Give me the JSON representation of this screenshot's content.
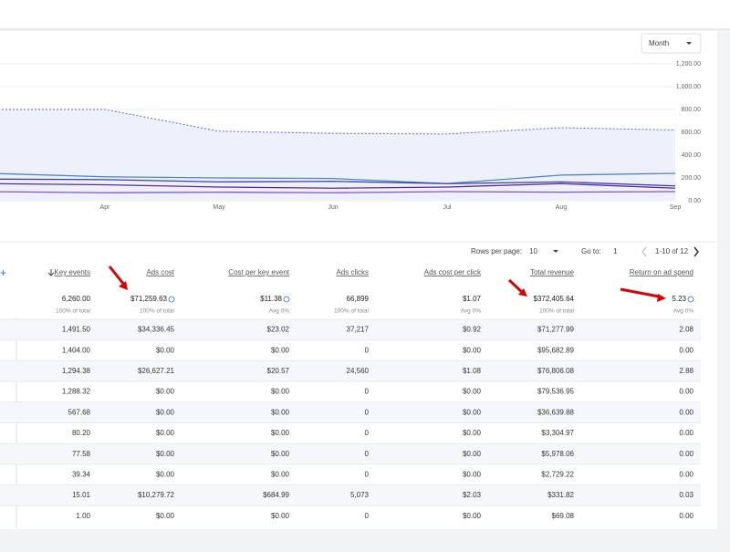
{
  "toolbar": {
    "granularity": "Month"
  },
  "chart_data": {
    "type": "line",
    "categories": [
      null,
      "Apr",
      "May",
      "Jun",
      "Jul",
      "Aug",
      "Sep"
    ],
    "ylim": [
      0,
      1200
    ],
    "yticks": [
      {
        "value": 0,
        "label": "0.00"
      },
      {
        "value": 200,
        "label": "200.00"
      },
      {
        "value": 400,
        "label": "400.00"
      },
      {
        "value": 600,
        "label": "600.00"
      },
      {
        "value": 800,
        "label": "800.00"
      },
      {
        "value": 1000,
        "label": "1,000.00"
      },
      {
        "value": 1200,
        "label": "1,200.00"
      }
    ],
    "grid": true,
    "series": [
      {
        "color": "#4f6fd0",
        "dashed": true,
        "area": true,
        "values": [
          800,
          800,
          610,
          590,
          585,
          640,
          620
        ]
      },
      {
        "color": "#4a86c5",
        "values": [
          240,
          210,
          200,
          195,
          150,
          225,
          240
        ]
      },
      {
        "color": "#3b3fb0",
        "values": [
          190,
          185,
          165,
          170,
          150,
          165,
          130
        ]
      },
      {
        "color": "#5b2a9a",
        "values": [
          150,
          140,
          120,
          110,
          120,
          150,
          110
        ]
      },
      {
        "color": "#8a4fd0",
        "values": [
          80,
          70,
          75,
          70,
          80,
          75,
          80
        ]
      }
    ]
  },
  "pagination": {
    "rows_label": "Rows per page:",
    "rows": "10",
    "goto_label": "Go to:",
    "goto": "1",
    "range": "1-10 of 12"
  },
  "table": {
    "columns": [
      "Key events",
      "Ads cost",
      "Cost per key event",
      "Ads clicks",
      "Ads cost per click",
      "Total revenue",
      "Return on ad spend"
    ],
    "totals": [
      [
        "6,260.00",
        "100% of total"
      ],
      [
        "$71,259.63",
        "100% of total"
      ],
      [
        "$11.38",
        "Avg 0%"
      ],
      [
        "66,899",
        "100% of total"
      ],
      [
        "$1.07",
        "Avg 0%"
      ],
      [
        "$372,405.64",
        "100% of total"
      ],
      [
        "5.23",
        "Avg 0%"
      ]
    ],
    "rows": [
      [
        "1,491.50",
        "$34,336.45",
        "$23.02",
        "37,217",
        "$0.92",
        "$71,277.99",
        "2.08"
      ],
      [
        "1,404.00",
        "$0.00",
        "$0.00",
        "0",
        "$0.00",
        "$95,682.89",
        "0.00"
      ],
      [
        "1,294.38",
        "$26,627.21",
        "$20.57",
        "24,560",
        "$1.08",
        "$76,806.08",
        "2.88"
      ],
      [
        "1,288.32",
        "$0.00",
        "$0.00",
        "0",
        "$0.00",
        "$79,536.95",
        "0.00"
      ],
      [
        "567.68",
        "$0.00",
        "$0.00",
        "0",
        "$0.00",
        "$36,639.88",
        "0.00"
      ],
      [
        "80.20",
        "$0.00",
        "$0.00",
        "0",
        "$0.00",
        "$3,304.97",
        "0.00"
      ],
      [
        "77.58",
        "$0.00",
        "$0.00",
        "0",
        "$0.00",
        "$5,978.06",
        "0.00"
      ],
      [
        "39.34",
        "$0.00",
        "$0.00",
        "0",
        "$0.00",
        "$2,729.22",
        "0.00"
      ],
      [
        "15.01",
        "$10,279.72",
        "$684.99",
        "5,073",
        "$2.03",
        "$331.82",
        "0.03"
      ],
      [
        "1.00",
        "$0.00",
        "$0.00",
        "0",
        "$0.00",
        "$69.08",
        "0.00"
      ]
    ]
  }
}
